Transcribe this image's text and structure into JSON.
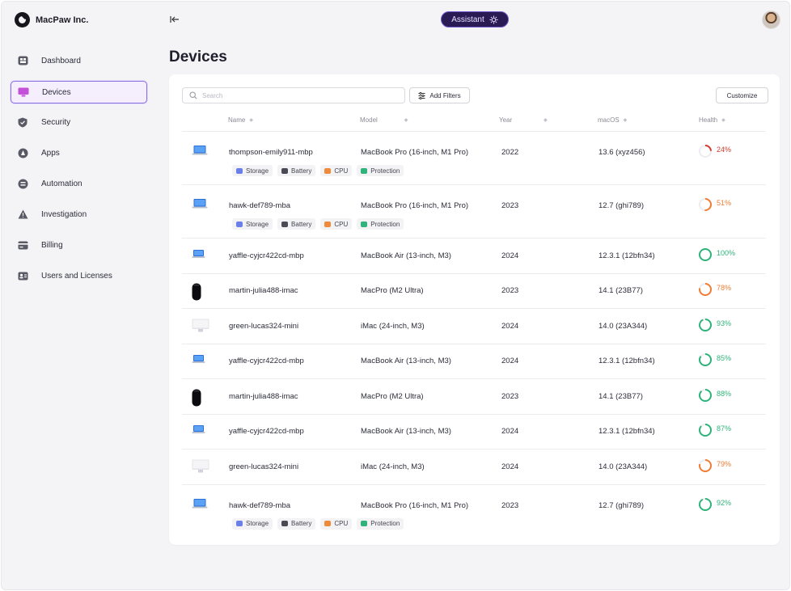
{
  "brand": {
    "name": "MacPaw Inc."
  },
  "header": {
    "assistant_label": "Assistant"
  },
  "sidebar": {
    "items": [
      {
        "label": "Dashboard",
        "icon": "dashboard-icon",
        "active": false
      },
      {
        "label": "Devices",
        "icon": "monitor-icon",
        "active": true
      },
      {
        "label": "Security",
        "icon": "shield-icon",
        "active": false
      },
      {
        "label": "Apps",
        "icon": "apps-icon",
        "active": false
      },
      {
        "label": "Automation",
        "icon": "automation-icon",
        "active": false
      },
      {
        "label": "Investigation",
        "icon": "warning-icon",
        "active": false
      },
      {
        "label": "Billing",
        "icon": "billing-icon",
        "active": false
      },
      {
        "label": "Users and Licenses",
        "icon": "users-icon",
        "active": false
      }
    ]
  },
  "main": {
    "title": "Devices",
    "search_placeholder": "Search",
    "add_filters_label": "Add Filters",
    "customize_label": "Customize",
    "columns": [
      "Name",
      "Model",
      "Year",
      "macOS",
      "Health"
    ],
    "tags": [
      "Storage",
      "Battery",
      "CPU",
      "Protection"
    ],
    "devices": [
      {
        "type": "laptop",
        "name": "thompson-emily911-mbp",
        "model": "MacBook Pro (16-inch, M1 Pro)",
        "year": "2022",
        "macos": "13.6 (xyz456)",
        "health": "24%",
        "health_value": 0.24,
        "health_status": "critical",
        "show_tags": true
      },
      {
        "type": "laptop",
        "name": "hawk-def789-mba",
        "model": "MacBook Pro (16-inch, M1 Pro)",
        "year": "2023",
        "macos": "12.7 (ghi789)",
        "health": "51%",
        "health_value": 0.51,
        "health_status": "warning",
        "show_tags": true
      },
      {
        "type": "laptop-small",
        "name": "yaffle-cyjcr422cd-mbp",
        "model": "MacBook Air (13-inch, M3)",
        "year": "2024",
        "macos": "12.3.1 (12bfn34)",
        "health": "100%",
        "health_value": 1.0,
        "health_status": "good",
        "show_tags": false
      },
      {
        "type": "macpro",
        "name": "martin-julia488-imac",
        "model": "MacPro (M2 Ultra)",
        "year": "2023",
        "macos": "14.1 (23B77)",
        "health": "78%",
        "health_value": 0.78,
        "health_status": "warning",
        "show_tags": false
      },
      {
        "type": "imac",
        "name": "green-lucas324-mini",
        "model": "iMac (24-inch, M3)",
        "year": "2024",
        "macos": "14.0 (23A344)",
        "health": "93%",
        "health_value": 0.93,
        "health_status": "good",
        "show_tags": false
      },
      {
        "type": "laptop-small",
        "name": "yaffle-cyjcr422cd-mbp",
        "model": "MacBook Air (13-inch, M3)",
        "year": "2024",
        "macos": "12.3.1 (12bfn34)",
        "health": "85%",
        "health_value": 0.85,
        "health_status": "good",
        "show_tags": false
      },
      {
        "type": "macpro",
        "name": "martin-julia488-imac",
        "model": "MacPro (M2 Ultra)",
        "year": "2023",
        "macos": "14.1 (23B77)",
        "health": "88%",
        "health_value": 0.88,
        "health_status": "good",
        "show_tags": false
      },
      {
        "type": "laptop-small",
        "name": "yaffle-cyjcr422cd-mbp",
        "model": "MacBook Air (13-inch, M3)",
        "year": "2024",
        "macos": "12.3.1 (12bfn34)",
        "health": "87%",
        "health_value": 0.87,
        "health_status": "good",
        "show_tags": false
      },
      {
        "type": "imac",
        "name": "green-lucas324-mini",
        "model": "iMac (24-inch, M3)",
        "year": "2024",
        "macos": "14.0 (23A344)",
        "health": "79%",
        "health_value": 0.79,
        "health_status": "warning",
        "show_tags": false
      },
      {
        "type": "laptop",
        "name": "hawk-def789-mba",
        "model": "MacBook Pro (16-inch, M1 Pro)",
        "year": "2023",
        "macos": "12.7 (ghi789)",
        "health": "92%",
        "health_value": 0.92,
        "health_status": "good",
        "show_tags": true
      }
    ]
  },
  "colors": {
    "accent": "#8a6fe0",
    "assistant_bg": "#2a1b55",
    "health_critical": "#d33a2c",
    "health_warning": "#ef7d35",
    "health_good": "#2fb37a"
  }
}
